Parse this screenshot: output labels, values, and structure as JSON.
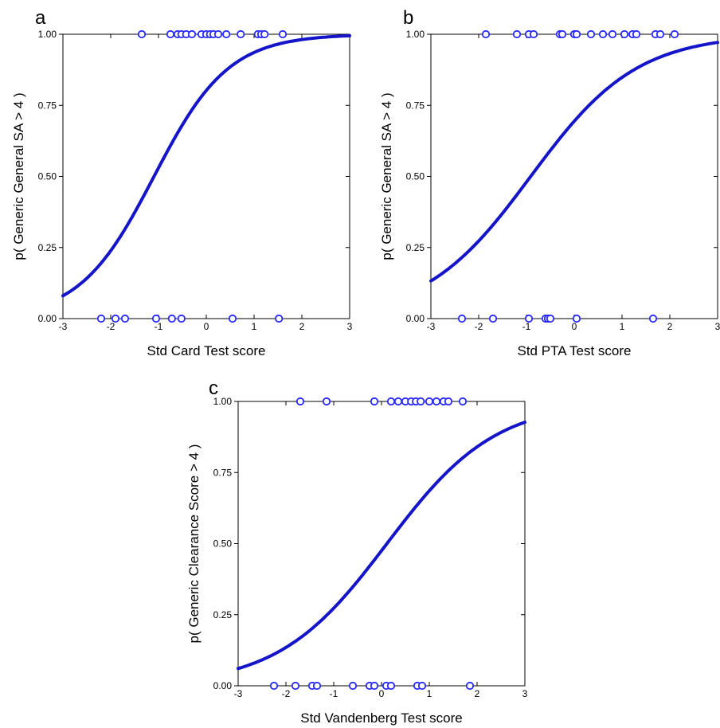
{
  "chart_data": [
    {
      "type": "scatter",
      "panel_label": "a",
      "xlabel": "Std Card Test score",
      "ylabel": "p( Generic General SA > 4 )",
      "xlim": [
        -3,
        3
      ],
      "ylim": [
        0,
        1
      ],
      "x_ticks": [
        "-3",
        "-2",
        "-1",
        "0",
        "1",
        "2",
        "3"
      ],
      "y_ticks": [
        "0.00",
        "0.25",
        "0.50",
        "0.75",
        "1.00"
      ],
      "curve": {
        "intercept": 1.4,
        "slope": 1.28,
        "color": "#1414c8"
      },
      "points_y1": [
        -1.35,
        -0.75,
        -0.6,
        -0.52,
        -0.42,
        -0.3,
        -0.1,
        0.0,
        0.08,
        0.15,
        0.25,
        0.42,
        0.72,
        1.08,
        1.15,
        1.22,
        1.6
      ],
      "points_y0": [
        -2.2,
        -1.9,
        -1.7,
        -1.05,
        -0.72,
        -0.52,
        0.55,
        1.52
      ],
      "marker_color": "#2828ff"
    },
    {
      "type": "scatter",
      "panel_label": "b",
      "xlabel": "Std PTA Test score",
      "ylabel": "p( Generic General SA > 4 )",
      "xlim": [
        -3,
        3
      ],
      "ylim": [
        0,
        1
      ],
      "x_ticks": [
        "-3",
        "-2",
        "-1",
        "0",
        "1",
        "2",
        "3"
      ],
      "y_ticks": [
        "0.00",
        "0.25",
        "0.50",
        "0.75",
        "1.00"
      ],
      "curve": {
        "intercept": 0.82,
        "slope": 0.9,
        "color": "#1414c8"
      },
      "points_y1": [
        -1.85,
        -1.2,
        -0.95,
        -0.85,
        -0.3,
        -0.25,
        0.0,
        0.05,
        0.35,
        0.6,
        0.8,
        1.05,
        1.22,
        1.3,
        1.7,
        1.8,
        2.1
      ],
      "points_y0": [
        -2.35,
        -1.7,
        -0.95,
        -0.6,
        -0.55,
        -0.5,
        0.05,
        1.65
      ],
      "marker_color": "#2828ff"
    },
    {
      "type": "scatter",
      "panel_label": "c",
      "xlabel": "Std Vandenberg Test score",
      "ylabel": "p( Generic Clearance Score > 4 )",
      "xlim": [
        -3,
        3
      ],
      "ylim": [
        0,
        1
      ],
      "x_ticks": [
        "-3",
        "-2",
        "-1",
        "0",
        "1",
        "2",
        "3"
      ],
      "y_ticks": [
        "0.00",
        "0.25",
        "0.50",
        "0.75",
        "1.00"
      ],
      "curve": {
        "intercept": -0.1,
        "slope": 0.88,
        "color": "#1414c8"
      },
      "points_y1": [
        -1.7,
        -1.15,
        -0.15,
        0.2,
        0.35,
        0.5,
        0.62,
        0.72,
        0.82,
        1.0,
        1.15,
        1.3,
        1.4,
        1.7
      ],
      "points_y0": [
        -2.25,
        -1.8,
        -1.45,
        -1.35,
        -0.6,
        -0.25,
        -0.15,
        0.1,
        0.2,
        0.75,
        0.85,
        1.85
      ],
      "marker_color": "#2828ff"
    }
  ]
}
